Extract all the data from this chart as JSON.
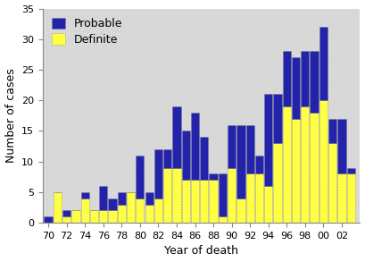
{
  "years": [
    1970,
    1971,
    1972,
    1973,
    1974,
    1975,
    1976,
    1977,
    1978,
    1979,
    1980,
    1981,
    1982,
    1983,
    1984,
    1985,
    1986,
    1987,
    1988,
    1989,
    1990,
    1991,
    1992,
    1993,
    1994,
    1995,
    1996,
    1997,
    1998,
    1999,
    2000,
    2001,
    2002,
    2003
  ],
  "definite": [
    0,
    5,
    1,
    2,
    4,
    2,
    2,
    2,
    3,
    5,
    4,
    3,
    4,
    9,
    9,
    7,
    7,
    7,
    7,
    1,
    9,
    4,
    8,
    8,
    6,
    13,
    19,
    17,
    19,
    18,
    20,
    13,
    8,
    8
  ],
  "probable": [
    1,
    0,
    1,
    0,
    1,
    0,
    4,
    2,
    2,
    0,
    7,
    2,
    8,
    3,
    10,
    8,
    11,
    7,
    1,
    7,
    7,
    12,
    8,
    3,
    15,
    8,
    9,
    10,
    9,
    10,
    12,
    4,
    9,
    1
  ],
  "probable_color": "#2222aa",
  "definite_color": "#ffff44",
  "bar_edge_color": "#666666",
  "xlabel": "Year of death",
  "ylabel": "Number of cases",
  "legend_probable": "Probable",
  "legend_definite": "Definite",
  "ylim": [
    0,
    35
  ],
  "yticks": [
    0,
    5,
    10,
    15,
    20,
    25,
    30,
    35
  ],
  "xtick_labels": [
    "70",
    "72",
    "74",
    "76",
    "78",
    "80",
    "82",
    "84",
    "86",
    "88",
    "90",
    "92",
    "94",
    "96",
    "98",
    "00",
    "02"
  ],
  "xtick_positions": [
    1970,
    1972,
    1974,
    1976,
    1978,
    1980,
    1982,
    1984,
    1986,
    1988,
    1990,
    1992,
    1994,
    1996,
    1998,
    2000,
    2002
  ],
  "plot_bg_color": "#d8d8d8",
  "fig_bg_color": "#ffffff",
  "axis_fontsize": 9,
  "tick_fontsize": 8,
  "legend_fontsize": 9,
  "bar_width": 0.9
}
